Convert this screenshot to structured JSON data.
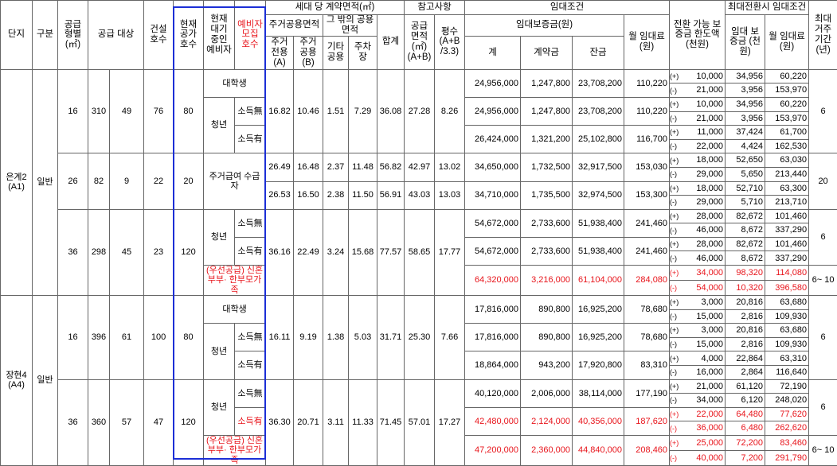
{
  "header": {
    "complex": "단지",
    "category": "구분",
    "size": "공급 형별 (㎡)",
    "target": "공급 대상",
    "built": "건설 호수",
    "vacant": "현재 공가 호수",
    "waiting": "현재 대기 중인 예비자",
    "recruit": "예비자 모집 호수",
    "contract_area": "세대 당 계약면적(㎡)",
    "residential_common": "주거공용면적",
    "other_common": "그 밖의 공용면적",
    "exclusive": "주거 전용 (A)",
    "common": "주거 공용 (B)",
    "other": "기타 공용",
    "parking": "주차장",
    "total": "합계",
    "reference": "참고사항",
    "supply_area": "공급 면적 (㎡) (A+B)",
    "pyeong": "평수 (A+B /3.3)",
    "rent_terms": "임대조건",
    "deposit": "임대보증금(원)",
    "deposit_total": "계",
    "down_payment": "계약금",
    "balance": "잔금",
    "monthly_rent": "월 임대료 (원)",
    "conversion_limit": "전환 가능 보증금 한도액 (천원)",
    "max_conversion": "최대전환시 임대조건",
    "max_deposit": "임대 보증금 (천원)",
    "max_monthly": "월 임대료 (원)",
    "max_period": "최대 거주 기간 (년)"
  },
  "complexes": [
    {
      "name": "은계2 (A1)",
      "category": "일반",
      "types": [
        {
          "size": "16",
          "built": "310",
          "vacant": "49",
          "waiting": "76",
          "recruit": "80",
          "rows": [
            {
              "target": "대학생",
              "area": [
                "16.82",
                "10.46",
                "1.51",
                "7.29",
                "36.08",
                "27.28",
                "8.26"
              ],
              "rent": [
                "24,956,000",
                "1,247,800",
                "23,708,200",
                "110,220"
              ],
              "conversion": [
                [
                  "(+)",
                  "10,000",
                  "34,956",
                  "60,220"
                ],
                [
                  "(-)",
                  "21,000",
                  "3,956",
                  "153,970"
                ]
              ],
              "max": "6"
            },
            {
              "group": "청년",
              "sub": "소득無",
              "rent": [
                "24,956,000",
                "1,247,800",
                "23,708,200",
                "110,220"
              ],
              "conversion": [
                [
                  "(+)",
                  "10,000",
                  "34,956",
                  "60,220"
                ],
                [
                  "(-)",
                  "21,000",
                  "3,956",
                  "153,970"
                ]
              ]
            },
            {
              "sub": "소득有",
              "rent": [
                "26,424,000",
                "1,321,200",
                "25,102,800",
                "116,700"
              ],
              "conversion": [
                [
                  "(+)",
                  "11,000",
                  "37,424",
                  "61,700"
                ],
                [
                  "(-)",
                  "22,000",
                  "4,424",
                  "162,530"
                ]
              ]
            }
          ]
        },
        {
          "size": "26",
          "built": "82",
          "vacant": "9",
          "waiting": "22",
          "recruit": "20",
          "rows": [
            {
              "target": "주거급여 수급자",
              "area": [
                "26.49",
                "16.48",
                "2.37",
                "11.48",
                "56.82",
                "42.97",
                "13.02"
              ],
              "rent": [
                "34,650,000",
                "1,732,500",
                "32,917,500",
                "153,030"
              ],
              "conversion": [
                [
                  "(+)",
                  "18,000",
                  "52,650",
                  "63,030"
                ],
                [
                  "(-)",
                  "29,000",
                  "5,650",
                  "213,440"
                ]
              ],
              "max": "20"
            },
            {
              "area": [
                "26.53",
                "16.50",
                "2.38",
                "11.50",
                "56.91",
                "43.03",
                "13.03"
              ],
              "rent": [
                "34,710,000",
                "1,735,500",
                "32,974,500",
                "153,300"
              ],
              "conversion": [
                [
                  "(+)",
                  "18,000",
                  "52,710",
                  "63,300"
                ],
                [
                  "(-)",
                  "29,000",
                  "5,710",
                  "213,710"
                ]
              ]
            }
          ]
        },
        {
          "size": "36",
          "built": "298",
          "vacant": "45",
          "waiting": "23",
          "recruit": "120",
          "rows": [
            {
              "group": "청년",
              "sub": "소득無",
              "area": [
                "36.16",
                "22.49",
                "3.24",
                "15.68",
                "77.57",
                "58.65",
                "17.77"
              ],
              "rent": [
                "54,672,000",
                "2,733,600",
                "51,938,400",
                "241,460"
              ],
              "conversion": [
                [
                  "(+)",
                  "28,000",
                  "82,672",
                  "101,460"
                ],
                [
                  "(-)",
                  "46,000",
                  "8,672",
                  "337,290"
                ]
              ],
              "max": "6"
            },
            {
              "sub": "소득有",
              "rent": [
                "54,672,000",
                "2,733,600",
                "51,938,400",
                "241,460"
              ],
              "conversion": [
                [
                  "(+)",
                  "28,000",
                  "82,672",
                  "101,460"
                ],
                [
                  "(-)",
                  "46,000",
                  "8,672",
                  "337,290"
                ]
              ]
            },
            {
              "target": "(우선공급) 신혼부부· 한부모가족",
              "color": "#e8141b",
              "rent": [
                "64,320,000",
                "3,216,000",
                "61,104,000",
                "284,080"
              ],
              "conversion": [
                [
                  "(+)",
                  "34,000",
                  "98,320",
                  "114,080"
                ],
                [
                  "(-)",
                  "54,000",
                  "10,320",
                  "396,580"
                ]
              ],
              "max": "6~ 10"
            }
          ]
        }
      ]
    },
    {
      "name": "장현4 (A4)",
      "category": "일반",
      "types": [
        {
          "size": "16",
          "built": "396",
          "vacant": "61",
          "waiting": "100",
          "recruit": "80",
          "rows": [
            {
              "target": "대학생",
              "area": [
                "16.11",
                "9.19",
                "1.38",
                "5.03",
                "31.71",
                "25.30",
                "7.66"
              ],
              "rent": [
                "17,816,000",
                "890,800",
                "16,925,200",
                "78,680"
              ],
              "conversion": [
                [
                  "(+)",
                  "3,000",
                  "20,816",
                  "63,680"
                ],
                [
                  "(-)",
                  "15,000",
                  "2,816",
                  "109,930"
                ]
              ],
              "max": "6"
            },
            {
              "group": "청년",
              "sub": "소득無",
              "rent": [
                "17,816,000",
                "890,800",
                "16,925,200",
                "78,680"
              ],
              "conversion": [
                [
                  "(+)",
                  "3,000",
                  "20,816",
                  "63,680"
                ],
                [
                  "(-)",
                  "15,000",
                  "2,816",
                  "109,930"
                ]
              ]
            },
            {
              "sub": "소득有",
              "rent": [
                "18,864,000",
                "943,200",
                "17,920,800",
                "83,310"
              ],
              "conversion": [
                [
                  "(+)",
                  "4,000",
                  "22,864",
                  "63,310"
                ],
                [
                  "(-)",
                  "16,000",
                  "2,864",
                  "116,640"
                ]
              ]
            }
          ]
        },
        {
          "size": "36",
          "built": "360",
          "vacant": "57",
          "waiting": "47",
          "recruit": "120",
          "rows": [
            {
              "group": "청년",
              "sub": "소득無",
              "area": [
                "36.30",
                "20.71",
                "3.11",
                "11.33",
                "71.45",
                "57.01",
                "17.27"
              ],
              "rent": [
                "40,120,000",
                "2,006,000",
                "38,114,000",
                "177,190"
              ],
              "conversion": [
                [
                  "(+)",
                  "21,000",
                  "61,120",
                  "72,190"
                ],
                [
                  "(-)",
                  "34,000",
                  "6,120",
                  "248,020"
                ]
              ],
              "max": "6"
            },
            {
              "sub": "소득有",
              "color": "#e8141b",
              "rent": [
                "42,480,000",
                "2,124,000",
                "40,356,000",
                "187,620"
              ],
              "conversion": [
                [
                  "(+)",
                  "22,000",
                  "64,480",
                  "77,620"
                ],
                [
                  "(-)",
                  "36,000",
                  "6,480",
                  "262,620"
                ]
              ]
            },
            {
              "target": "(우선공급) 신혼부부· 한부모가족",
              "color": "#e8141b",
              "rent": [
                "47,200,000",
                "2,360,000",
                "44,840,000",
                "208,460"
              ],
              "conversion": [
                [
                  "(+)",
                  "25,000",
                  "72,200",
                  "83,460"
                ],
                [
                  "(-)",
                  "40,000",
                  "7,200",
                  "291,790"
                ]
              ],
              "max": "6~ 10"
            }
          ]
        }
      ]
    }
  ]
}
